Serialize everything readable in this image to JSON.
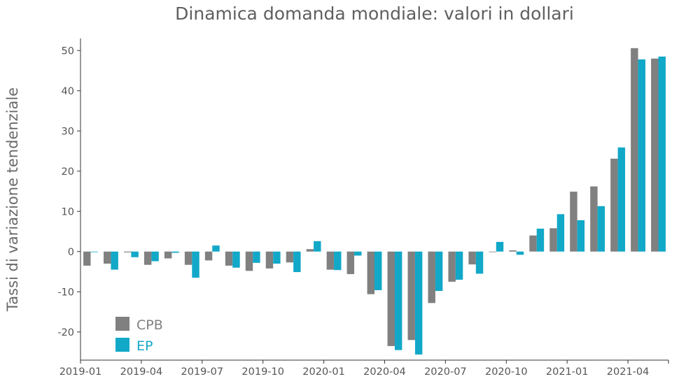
{
  "chart_data": {
    "type": "bar",
    "title": "Dinamica domanda mondiale: valori in dollari",
    "xlabel": "",
    "ylabel": "Tassi di variazione tendenziale",
    "ylim": [
      -27,
      53
    ],
    "yticks": [
      -20,
      -10,
      0,
      10,
      20,
      30,
      40,
      50
    ],
    "grid": false,
    "legend_position": "bottom-left",
    "x_tick_labels": [
      "2019-01",
      "2019-04",
      "2019-07",
      "2019-10",
      "2020-01",
      "2020-04",
      "2020-07",
      "2020-10",
      "2021-01",
      "2021-04"
    ],
    "categories": [
      "2019-01",
      "2019-02",
      "2019-03",
      "2019-04",
      "2019-05",
      "2019-06",
      "2019-07",
      "2019-08",
      "2019-09",
      "2019-10",
      "2019-11",
      "2019-12",
      "2020-01",
      "2020-02",
      "2020-03",
      "2020-04",
      "2020-05",
      "2020-06",
      "2020-07",
      "2020-08",
      "2020-09",
      "2020-10",
      "2020-11",
      "2020-12",
      "2021-01",
      "2021-02",
      "2021-03",
      "2021-04",
      "2021-05"
    ],
    "series": [
      {
        "name": "CPB",
        "color": "#808080",
        "values": [
          -3.5,
          -3.0,
          -0.2,
          -3.3,
          -1.7,
          -3.3,
          -2.2,
          -3.5,
          -4.8,
          -4.2,
          -2.7,
          0.6,
          -4.5,
          -5.6,
          -10.6,
          -23.5,
          -22.0,
          -12.8,
          -7.5,
          -3.2,
          0.0,
          0.3,
          4.0,
          5.8,
          14.9,
          16.2,
          23.1,
          50.6,
          48.0
        ]
      },
      {
        "name": "EP",
        "color": "#12a8c8",
        "values": [
          -0.1,
          -4.5,
          -1.4,
          -2.4,
          -0.3,
          -6.5,
          1.5,
          -4.0,
          -2.8,
          -3.0,
          -5.1,
          2.6,
          -4.6,
          -1.0,
          -9.6,
          -24.5,
          -25.6,
          -9.8,
          -7.0,
          -5.5,
          2.4,
          -0.8,
          5.7,
          9.3,
          7.8,
          11.3,
          25.9,
          47.8,
          48.5
        ]
      }
    ]
  }
}
